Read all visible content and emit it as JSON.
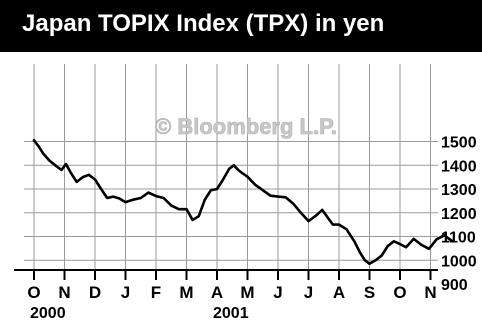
{
  "header": {
    "title": "Japan TOPIX Index (TPX) in yen"
  },
  "watermark": "© Bloomberg L.P.",
  "colors": {
    "title_bar": "#000000",
    "title_text": "#ffffff",
    "line": "#000000",
    "grid": "#9a9a9a",
    "watermark": "#c8c8c8"
  },
  "chart_data": {
    "type": "line",
    "title": "Japan TOPIX Index (TPX) in yen",
    "xlabel": "",
    "ylabel": "",
    "y_axis_side": "right",
    "ylim": [
      890,
      1570
    ],
    "grid": true,
    "months": [
      "O",
      "N",
      "D",
      "J",
      "F",
      "M",
      "A",
      "M",
      "J",
      "J",
      "A",
      "S",
      "O",
      "N"
    ],
    "years": [
      {
        "label": "2000",
        "month_index": 0
      },
      {
        "label": "2001",
        "month_index": 6
      }
    ],
    "yticks": [
      {
        "value": 1500,
        "label": "1500"
      },
      {
        "value": 1400,
        "label": "1400"
      },
      {
        "value": 1300,
        "label": "1300"
      },
      {
        "value": 1200,
        "label": "1200"
      },
      {
        "value": 1100,
        "label": "1100"
      },
      {
        "value": 1000,
        "label": "1000"
      },
      {
        "value": 900,
        "label": "900"
      }
    ],
    "series": [
      {
        "points": [
          [
            0.0,
            1505
          ],
          [
            0.15,
            1480
          ],
          [
            0.3,
            1450
          ],
          [
            0.5,
            1420
          ],
          [
            0.7,
            1400
          ],
          [
            0.9,
            1380
          ],
          [
            1.05,
            1405
          ],
          [
            1.2,
            1370
          ],
          [
            1.4,
            1330
          ],
          [
            1.6,
            1350
          ],
          [
            1.8,
            1360
          ],
          [
            2.0,
            1340
          ],
          [
            2.2,
            1300
          ],
          [
            2.4,
            1262
          ],
          [
            2.6,
            1268
          ],
          [
            2.8,
            1260
          ],
          [
            3.0,
            1245
          ],
          [
            3.25,
            1255
          ],
          [
            3.5,
            1262
          ],
          [
            3.75,
            1285
          ],
          [
            4.0,
            1270
          ],
          [
            4.25,
            1262
          ],
          [
            4.5,
            1230
          ],
          [
            4.75,
            1215
          ],
          [
            5.0,
            1215
          ],
          [
            5.2,
            1170
          ],
          [
            5.4,
            1185
          ],
          [
            5.6,
            1255
          ],
          [
            5.8,
            1295
          ],
          [
            6.0,
            1300
          ],
          [
            6.2,
            1340
          ],
          [
            6.4,
            1385
          ],
          [
            6.55,
            1400
          ],
          [
            6.7,
            1380
          ],
          [
            6.85,
            1365
          ],
          [
            7.0,
            1352
          ],
          [
            7.25,
            1318
          ],
          [
            7.5,
            1295
          ],
          [
            7.75,
            1272
          ],
          [
            8.0,
            1268
          ],
          [
            8.25,
            1265
          ],
          [
            8.5,
            1238
          ],
          [
            8.75,
            1200
          ],
          [
            9.0,
            1165
          ],
          [
            9.25,
            1188
          ],
          [
            9.45,
            1212
          ],
          [
            9.6,
            1185
          ],
          [
            9.8,
            1150
          ],
          [
            10.0,
            1150
          ],
          [
            10.25,
            1130
          ],
          [
            10.5,
            1080
          ],
          [
            10.7,
            1030
          ],
          [
            10.85,
            1000
          ],
          [
            11.0,
            985
          ],
          [
            11.2,
            1000
          ],
          [
            11.4,
            1020
          ],
          [
            11.6,
            1060
          ],
          [
            11.8,
            1080
          ],
          [
            12.0,
            1068
          ],
          [
            12.2,
            1055
          ],
          [
            12.45,
            1090
          ],
          [
            12.7,
            1065
          ],
          [
            12.95,
            1048
          ],
          [
            13.2,
            1088
          ],
          [
            13.45,
            1105
          ],
          [
            13.7,
            1082
          ]
        ]
      }
    ]
  }
}
